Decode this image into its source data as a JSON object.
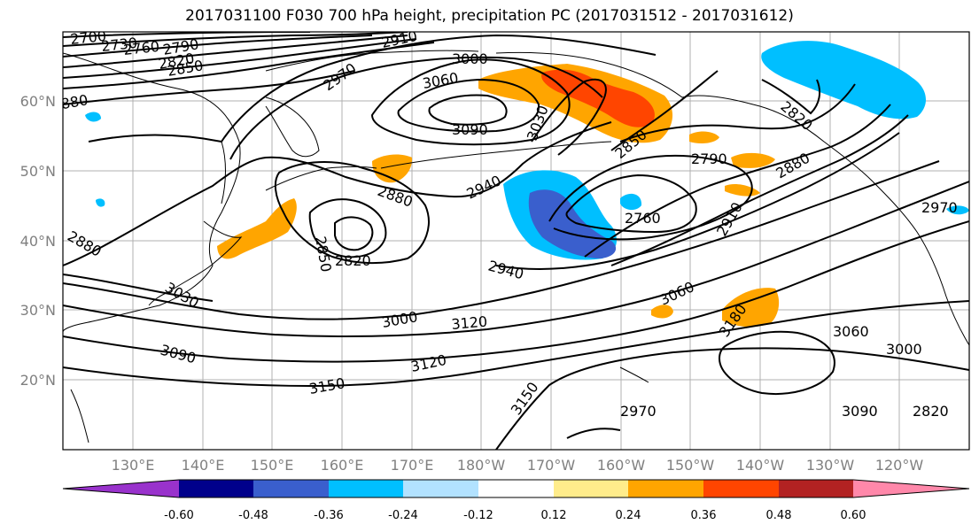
{
  "title": "2017031100 F030 700 hPa height, precipitation PC (2017031512 - 2017031612)",
  "latitude_labels": [
    "60°N",
    "50°N",
    "40°N",
    "30°N",
    "20°N"
  ],
  "longitude_labels": [
    "130°E",
    "140°E",
    "150°E",
    "160°E",
    "170°E",
    "180°W",
    "170°W",
    "160°W",
    "150°W",
    "140°W",
    "130°W",
    "120°W"
  ],
  "contour_labels": [
    "2700",
    "2730",
    "2760",
    "2790",
    "2820",
    "2850",
    "2880",
    "2910",
    "2940",
    "2970",
    "3000",
    "3030",
    "3060",
    "3090",
    "3120",
    "3150",
    "3180",
    "2790",
    "2820",
    "2850",
    "2760",
    "2880",
    "2910",
    "3060",
    "2940",
    "3000",
    "3090",
    "3120",
    "3150",
    "2850",
    "2820",
    "2880",
    "3030",
    "2970",
    "3060",
    "3000",
    "3090",
    "2820",
    "2880",
    "2970"
  ],
  "colorbar": {
    "ticks": [
      "-0.60",
      "-0.48",
      "-0.36",
      "-0.24",
      "-0.12",
      "0.12",
      "0.24",
      "0.36",
      "0.48",
      "0.60"
    ],
    "colors": [
      "#9932cc",
      "#00008b",
      "#3a5fcd",
      "#00bfff",
      "#b2e2ff",
      "#ffffff",
      "#ffec8b",
      "#ffa500",
      "#ff4500",
      "#b22222",
      "#ff88aa"
    ]
  },
  "shading_colors": {
    "neg_light": "#00bfff",
    "neg_mid": "#3a5fcd",
    "pos_light": "#ffa500",
    "pos_mid": "#ff4500",
    "pos_pale": "#ffec8b"
  }
}
